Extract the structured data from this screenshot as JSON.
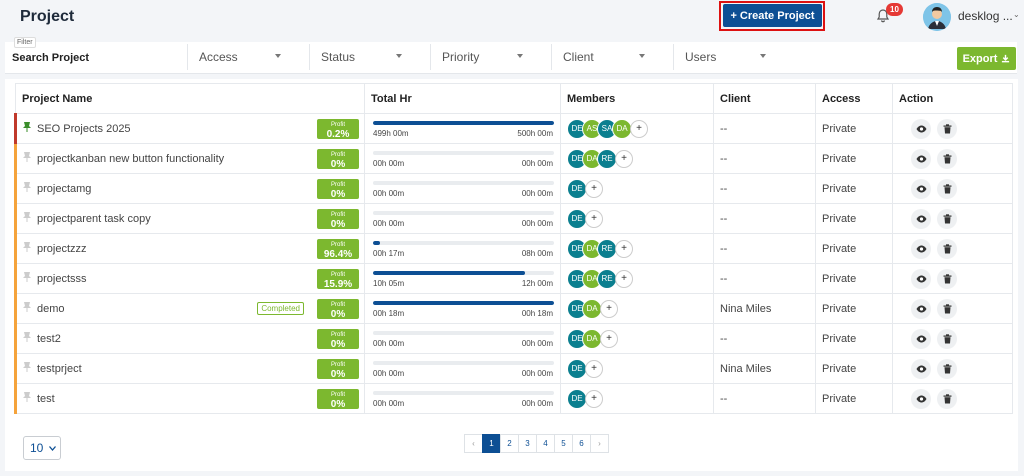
{
  "header": {
    "title": "Project",
    "create_label": "+ Create Project",
    "notif_count": "10",
    "user_name": "desklog ..."
  },
  "filters": {
    "tag": "Filter",
    "search_placeholder": "Search Project",
    "dropdowns": [
      "Access",
      "Status",
      "Priority",
      "Client",
      "Users"
    ],
    "export_label": "Export"
  },
  "table": {
    "columns": [
      "Project Name",
      "Total Hr",
      "Members",
      "Client",
      "Access",
      "Action"
    ],
    "profit_label": "Profit",
    "rows": [
      {
        "name": "SEO Projects 2025",
        "pinned": true,
        "completed": false,
        "profit": "0.2%",
        "spent": "499h 00m",
        "total": "500h 00m",
        "progress": 0.998,
        "members": [
          "DE",
          "AS",
          "SA",
          "DA"
        ],
        "client": "--",
        "access": "Private"
      },
      {
        "name": "projectkanban new button functionality",
        "pinned": false,
        "completed": false,
        "profit": "0%",
        "spent": "00h 00m",
        "total": "00h 00m",
        "progress": 0,
        "members": [
          "DE",
          "DA",
          "RE"
        ],
        "client": "--",
        "access": "Private"
      },
      {
        "name": "projectamg",
        "pinned": false,
        "completed": false,
        "profit": "0%",
        "spent": "00h 00m",
        "total": "00h 00m",
        "progress": 0,
        "members": [
          "DE"
        ],
        "client": "--",
        "access": "Private"
      },
      {
        "name": "projectparent task copy",
        "pinned": false,
        "completed": false,
        "profit": "0%",
        "spent": "00h 00m",
        "total": "00h 00m",
        "progress": 0,
        "members": [
          "DE"
        ],
        "client": "--",
        "access": "Private"
      },
      {
        "name": "projectzzz",
        "pinned": false,
        "completed": false,
        "profit": "96.4%",
        "spent": "00h 17m",
        "total": "08h 00m",
        "progress": 0.036,
        "members": [
          "DE",
          "DA",
          "RE"
        ],
        "client": "--",
        "access": "Private"
      },
      {
        "name": "projectsss",
        "pinned": false,
        "completed": false,
        "profit": "15.9%",
        "spent": "10h 05m",
        "total": "12h 00m",
        "progress": 0.84,
        "members": [
          "DE",
          "DA",
          "RE"
        ],
        "client": "--",
        "access": "Private"
      },
      {
        "name": "demo",
        "pinned": false,
        "completed": true,
        "completed_label": "Completed",
        "profit": "0%",
        "spent": "00h 18m",
        "total": "00h 18m",
        "progress": 1.0,
        "members": [
          "DE",
          "DA"
        ],
        "client": "Nina Miles",
        "access": "Private"
      },
      {
        "name": "test2",
        "pinned": false,
        "completed": false,
        "profit": "0%",
        "spent": "00h 00m",
        "total": "00h 00m",
        "progress": 0,
        "members": [
          "DE",
          "DA"
        ],
        "client": "--",
        "access": "Private"
      },
      {
        "name": "testprject",
        "pinned": false,
        "completed": false,
        "profit": "0%",
        "spent": "00h 00m",
        "total": "00h 00m",
        "progress": 0,
        "members": [
          "DE"
        ],
        "client": "Nina Miles",
        "access": "Private"
      },
      {
        "name": "test",
        "pinned": false,
        "completed": false,
        "profit": "0%",
        "spent": "00h 00m",
        "total": "00h 00m",
        "progress": 0,
        "members": [
          "DE"
        ],
        "client": "--",
        "access": "Private"
      }
    ]
  },
  "pagination": {
    "per_page": "10",
    "prev": "‹",
    "next": "›",
    "pages": [
      "1",
      "2",
      "3",
      "4",
      "5",
      "6"
    ],
    "active_page": "1"
  },
  "colors": {
    "primary": "#0d4f94",
    "success": "#7cb82f",
    "teal": "#0b7f8f",
    "danger": "#e53935",
    "highlight": "#dd1111"
  },
  "icons": {
    "notification": "bell-icon",
    "user_menu": "chevron-down-icon",
    "export": "download-icon",
    "pin": "pin-icon",
    "view": "eye-icon",
    "delete": "trash-icon",
    "add_member": "plus-icon"
  }
}
